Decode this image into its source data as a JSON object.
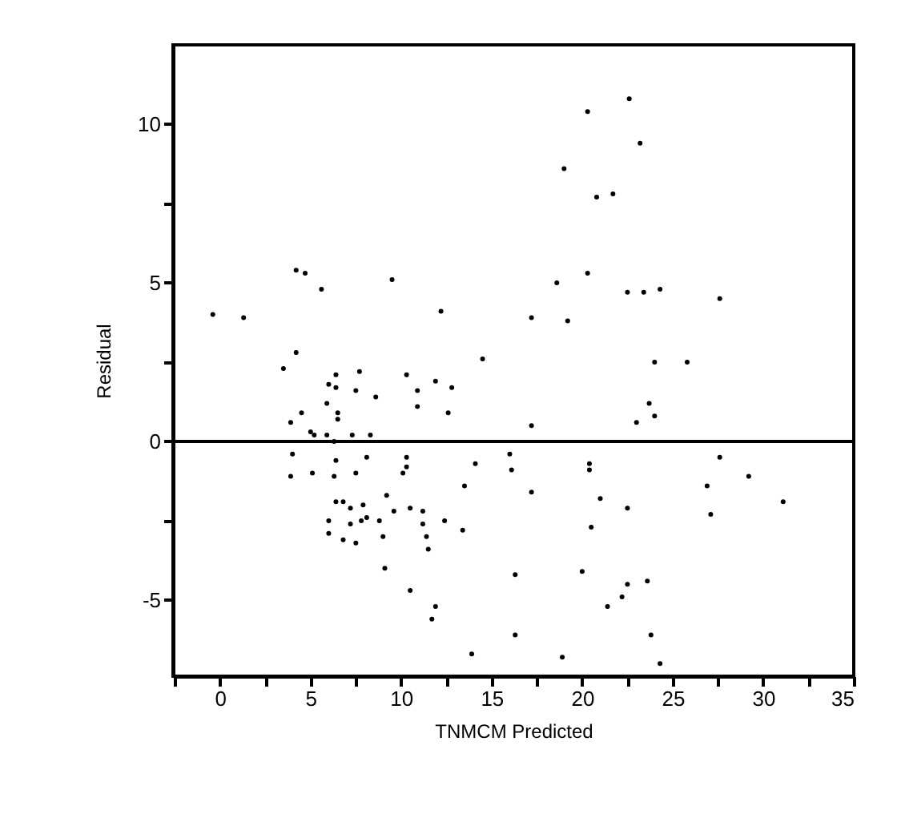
{
  "chart_data": {
    "type": "scatter",
    "xlabel": "TNMCM Predicted",
    "ylabel": "Residual",
    "x": [
      -0.4,
      1.3,
      4.2,
      4.7,
      5.6,
      9.5,
      12.2,
      4.2,
      3.5,
      14.5,
      22.6,
      20.3,
      23.2,
      19.0,
      20.8,
      21.7,
      20.3,
      18.6,
      22.5,
      23.4,
      24.3,
      27.6,
      17.2,
      19.2,
      24.0,
      25.8,
      17.2,
      23.7,
      23.0,
      24.0,
      16.0,
      16.1,
      17.2,
      20.4,
      20.4,
      21.0,
      22.5,
      20.5,
      27.6,
      29.2,
      26.9,
      27.1,
      31.1,
      16.3,
      20.0,
      22.5,
      23.6,
      22.2,
      21.4,
      16.3,
      23.8,
      18.9,
      24.3,
      6.4,
      7.7,
      10.3,
      6.0,
      6.4,
      7.5,
      11.9,
      12.8,
      10.9,
      8.6,
      5.9,
      10.9,
      4.5,
      6.5,
      6.5,
      12.6,
      3.9,
      5.0,
      5.2,
      5.9,
      7.3,
      8.3,
      6.3,
      4.0,
      6.4,
      8.1,
      10.3,
      10.3,
      10.1,
      7.5,
      6.3,
      5.1,
      3.9,
      14.1,
      13.5,
      9.2,
      6.4,
      6.8,
      7.9,
      7.2,
      9.6,
      10.5,
      11.2,
      8.1,
      7.8,
      8.8,
      6.0,
      7.2,
      11.2,
      12.4,
      13.4,
      6.0,
      9.0,
      11.4,
      6.8,
      7.5,
      11.5,
      9.1,
      10.5,
      11.9,
      11.7,
      13.9
    ],
    "values": [
      4.0,
      3.9,
      5.4,
      5.3,
      4.8,
      5.1,
      4.1,
      2.8,
      2.3,
      2.6,
      10.8,
      10.4,
      9.4,
      8.6,
      7.7,
      7.8,
      5.3,
      5.0,
      4.7,
      4.7,
      4.8,
      4.5,
      3.9,
      3.8,
      2.5,
      2.5,
      0.5,
      1.2,
      0.6,
      0.8,
      -0.4,
      -0.9,
      -1.6,
      -0.7,
      -0.9,
      -1.8,
      -2.1,
      -2.7,
      -0.5,
      -1.1,
      -1.4,
      -2.3,
      -1.9,
      -4.2,
      -4.1,
      -4.5,
      -4.4,
      -4.9,
      -5.2,
      -6.1,
      -6.1,
      -6.8,
      -7.0,
      2.1,
      2.2,
      2.1,
      1.8,
      1.7,
      1.6,
      1.9,
      1.7,
      1.6,
      1.4,
      1.2,
      1.1,
      0.9,
      0.9,
      0.7,
      0.9,
      0.6,
      0.3,
      0.2,
      0.2,
      0.2,
      0.2,
      0.0,
      -0.4,
      -0.6,
      -0.5,
      -0.5,
      -0.8,
      -1.0,
      -1.0,
      -1.1,
      -1.0,
      -1.1,
      -0.7,
      -1.4,
      -1.7,
      -1.9,
      -1.9,
      -2.0,
      -2.1,
      -2.2,
      -2.1,
      -2.2,
      -2.4,
      -2.5,
      -2.5,
      -2.5,
      -2.6,
      -2.6,
      -2.5,
      -2.8,
      -2.9,
      -3.0,
      -3.0,
      -3.1,
      -3.2,
      -3.4,
      -4.0,
      -4.7,
      -5.2,
      -5.6,
      -6.7
    ],
    "color": "#000000",
    "marker": "circle",
    "xlim": [
      -2.6,
      35
    ],
    "ylim": [
      -7.4,
      12.5
    ],
    "xticks": [
      {
        "value": -2.5,
        "label": null
      },
      0,
      {
        "value": 2.5,
        "label": null
      },
      5,
      {
        "value": 7.5,
        "label": null
      },
      10,
      {
        "value": 12.5,
        "label": null
      },
      15,
      {
        "value": 17.5,
        "label": null
      },
      20,
      {
        "value": 22.5,
        "label": null
      },
      25,
      {
        "value": 27.5,
        "label": null
      },
      30,
      {
        "value": 32.5,
        "label": null
      },
      35
    ],
    "yticks": [
      -5,
      {
        "value": -2.5,
        "label": null
      },
      0,
      {
        "value": 2.5,
        "label": null
      },
      5,
      {
        "value": 7.5,
        "label": null
      },
      10
    ],
    "ref_lines": [
      {
        "axis": "y",
        "value": 0
      }
    ],
    "grid": false
  }
}
